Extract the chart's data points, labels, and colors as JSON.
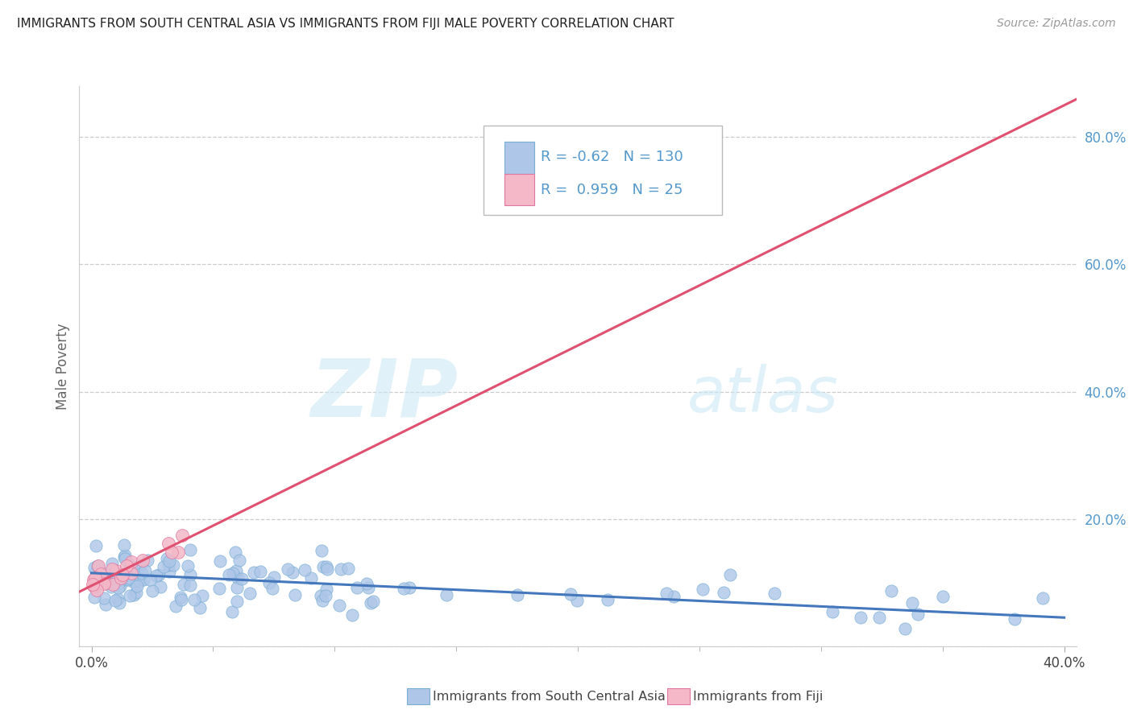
{
  "title": "IMMIGRANTS FROM SOUTH CENTRAL ASIA VS IMMIGRANTS FROM FIJI MALE POVERTY CORRELATION CHART",
  "source": "Source: ZipAtlas.com",
  "ylabel": "Male Poverty",
  "ytick_values": [
    0.0,
    0.2,
    0.4,
    0.6,
    0.8
  ],
  "ytick_labels": [
    "",
    "20.0%",
    "40.0%",
    "60.0%",
    "80.0%"
  ],
  "xtick_values": [
    0.0,
    0.4
  ],
  "xtick_labels": [
    "0.0%",
    "40.0%"
  ],
  "xlim": [
    -0.005,
    0.405
  ],
  "ylim": [
    0.0,
    0.88
  ],
  "blue_R": -0.62,
  "blue_N": 130,
  "pink_R": 0.959,
  "pink_N": 25,
  "blue_color": "#aec6e8",
  "blue_edge": "#7aafd4",
  "pink_color": "#f4b8c8",
  "pink_edge": "#e077a0",
  "blue_line_color": "#4477bb",
  "pink_line_color": "#e05070",
  "legend_label_blue": "Immigrants from South Central Asia",
  "legend_label_pink": "Immigrants from Fiji",
  "watermark_zip": "ZIP",
  "watermark_atlas": "atlas",
  "background_color": "#ffffff",
  "grid_color": "#cccccc",
  "blue_line_y0": 0.115,
  "blue_line_y1": 0.045,
  "pink_line_x0": 0.0,
  "pink_line_y0": 0.095,
  "pink_line_x1": 0.4,
  "pink_line_y1": 0.85
}
